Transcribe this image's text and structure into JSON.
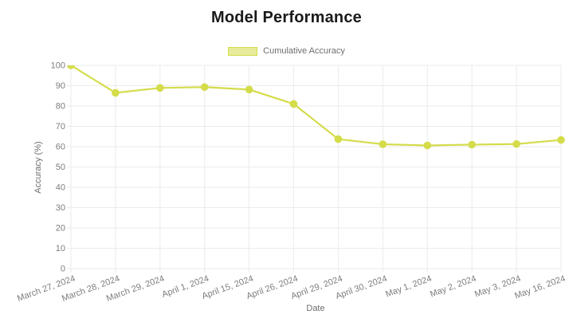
{
  "chart_data": {
    "type": "line",
    "title": "Model Performance",
    "xlabel": "Date",
    "ylabel": "Accuracy (%)",
    "categories": [
      "March 27, 2024",
      "March 28, 2024",
      "March 29, 2024",
      "April 1, 2024",
      "April 15, 2024",
      "April 26, 2024",
      "April 29, 2024",
      "April 30, 2024",
      "May 1, 2024",
      "May 2, 2024",
      "May 3, 2024",
      "May 16, 2024"
    ],
    "series": [
      {
        "name": "Cumulative Accuracy",
        "values": [
          100,
          86.5,
          88.9,
          89.3,
          88.1,
          81.0,
          63.7,
          61.2,
          60.6,
          61.0,
          61.3,
          63.3
        ]
      }
    ],
    "ylim": [
      0,
      100
    ],
    "y_ticks": [
      0,
      10,
      20,
      30,
      40,
      50,
      60,
      70,
      80,
      90,
      100
    ],
    "grid": true,
    "legend_position": "top-center",
    "x_label_rotation_deg": -20,
    "colors": {
      "line": "#d4dc4a",
      "point": "#d4dc4a",
      "legend_fill": "#e6ec9b",
      "grid": "#ebebeb",
      "tick_label": "#7d7d7d",
      "axis_title": "#6f6f6f",
      "title": "#1a1a1a"
    }
  }
}
